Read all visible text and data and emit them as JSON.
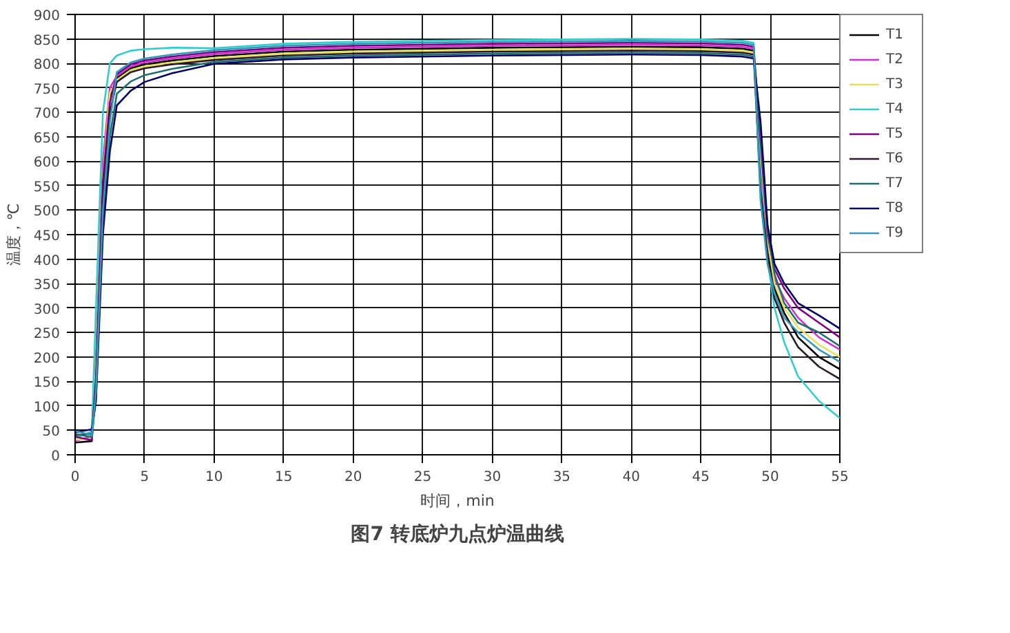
{
  "chart_data": {
    "type": "line",
    "title": "图7 转底炉九点炉温曲线",
    "xlabel": "时间，min",
    "ylabel": "温度，℃",
    "x": [
      0,
      1.2,
      1.5,
      2,
      2.5,
      3,
      4,
      5,
      7,
      10,
      15,
      20,
      30,
      40,
      45,
      48,
      48.8,
      49.3,
      49.8,
      50.3,
      51,
      52,
      53.5,
      55
    ],
    "xlim": [
      0,
      55
    ],
    "xticks": [
      0,
      5,
      10,
      15,
      20,
      25,
      30,
      35,
      40,
      45,
      50,
      55
    ],
    "ylim": [
      0,
      900
    ],
    "yticks": [
      0,
      50,
      100,
      150,
      200,
      250,
      300,
      350,
      400,
      450,
      500,
      550,
      600,
      650,
      700,
      750,
      800,
      850,
      900
    ],
    "grid": true,
    "legend": "right",
    "marker": "none",
    "line_style": "solid",
    "series": [
      {
        "name": "T1",
        "color": "#000000",
        "values": [
          25,
          28,
          150,
          550,
          730,
          770,
          790,
          798,
          806,
          815,
          824,
          828,
          832,
          834,
          833,
          830,
          826,
          600,
          420,
          340,
          290,
          240,
          200,
          175
        ]
      },
      {
        "name": "T2",
        "color": "#cc33cc",
        "values": [
          28,
          38,
          200,
          600,
          750,
          774,
          794,
          802,
          810,
          819,
          828,
          832,
          836,
          838,
          837,
          834,
          830,
          580,
          430,
          360,
          320,
          280,
          240,
          215
        ]
      },
      {
        "name": "T3",
        "color": "#e6e060",
        "values": [
          31,
          33,
          180,
          570,
          740,
          766,
          786,
          794,
          802,
          811,
          820,
          824,
          828,
          830,
          829,
          826,
          822,
          620,
          440,
          350,
          300,
          260,
          225,
          200
        ]
      },
      {
        "name": "T4",
        "color": "#33cccc",
        "values": [
          34,
          48,
          300,
          700,
          800,
          816,
          826,
          829,
          832,
          831,
          840,
          844,
          848,
          850,
          849,
          846,
          842,
          560,
          400,
          300,
          230,
          160,
          110,
          75
        ]
      },
      {
        "name": "T5",
        "color": "#800080",
        "values": [
          37,
          30,
          160,
          560,
          720,
          778,
          798,
          806,
          814,
          823,
          832,
          836,
          840,
          842,
          841,
          838,
          834,
          640,
          450,
          380,
          340,
          300,
          270,
          240
        ]
      },
      {
        "name": "T6",
        "color": "#2a1a2a",
        "values": [
          40,
          43,
          140,
          520,
          700,
          762,
          782,
          790,
          798,
          807,
          816,
          820,
          824,
          826,
          825,
          822,
          818,
          540,
          410,
          320,
          270,
          220,
          180,
          155
        ]
      },
      {
        "name": "T7",
        "color": "#1f6f6f",
        "values": [
          43,
          36,
          120,
          480,
          650,
          738,
          763,
          776,
          789,
          803,
          812,
          816,
          820,
          822,
          821,
          818,
          814,
          660,
          460,
          370,
          310,
          270,
          250,
          222
        ]
      },
      {
        "name": "T8",
        "color": "#000066",
        "values": [
          46,
          52,
          110,
          450,
          620,
          714,
          744,
          762,
          780,
          799,
          808,
          812,
          816,
          818,
          817,
          814,
          810,
          680,
          470,
          390,
          350,
          310,
          285,
          258
        ]
      },
      {
        "name": "T9",
        "color": "#3399bb",
        "values": [
          49,
          40,
          130,
          500,
          680,
          782,
          802,
          810,
          818,
          827,
          836,
          840,
          844,
          846,
          845,
          842,
          838,
          520,
          390,
          330,
          280,
          250,
          215,
          190
        ]
      }
    ]
  }
}
